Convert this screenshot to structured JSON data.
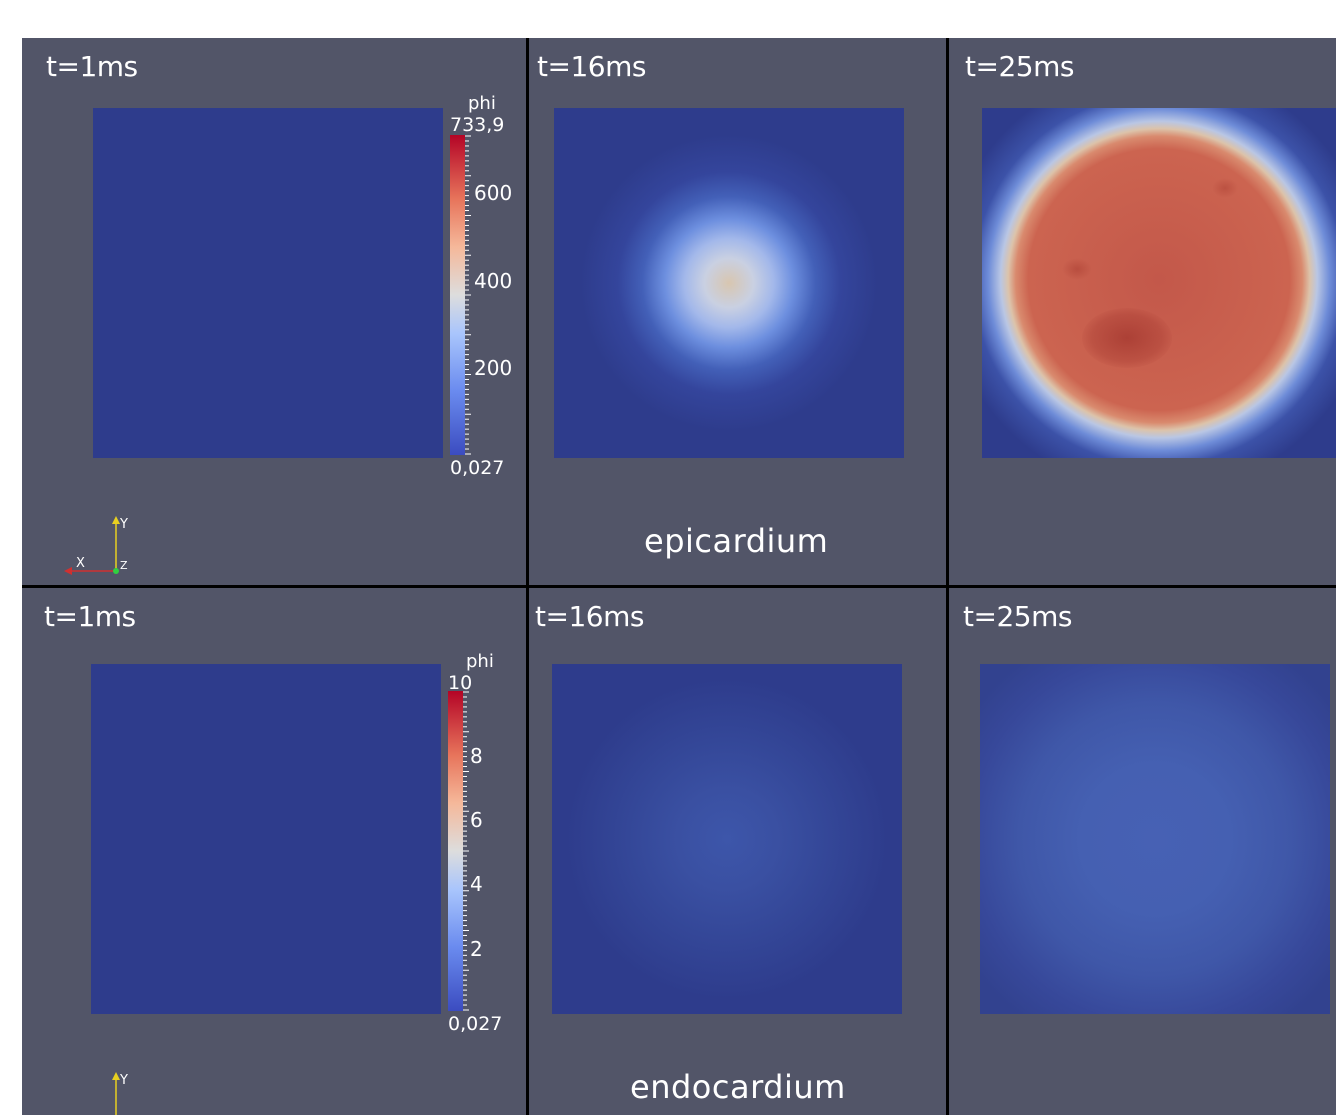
{
  "rows": [
    {
      "caption": "epicardium",
      "panels": [
        {
          "time": "t=1ms"
        },
        {
          "time": "t=16ms"
        },
        {
          "time": "t=25ms"
        }
      ],
      "colorbar": {
        "title": "phi",
        "max": "733,9",
        "min": "0,027",
        "labels": [
          "600",
          "400",
          "200"
        ]
      }
    },
    {
      "caption": "endocardium",
      "panels": [
        {
          "time": "t=1ms"
        },
        {
          "time": "t=16ms"
        },
        {
          "time": "t=25ms"
        }
      ],
      "colorbar": {
        "title": "phi",
        "max": "10",
        "min": "0,027",
        "labels": [
          "8",
          "6",
          "4",
          "2"
        ]
      }
    }
  ],
  "axes": {
    "y": "Y",
    "x": "X",
    "z": "Z"
  },
  "colors": {
    "panel_bg": "#525568",
    "field_low": "#2e3c8c",
    "field_high": "#c65a45"
  }
}
